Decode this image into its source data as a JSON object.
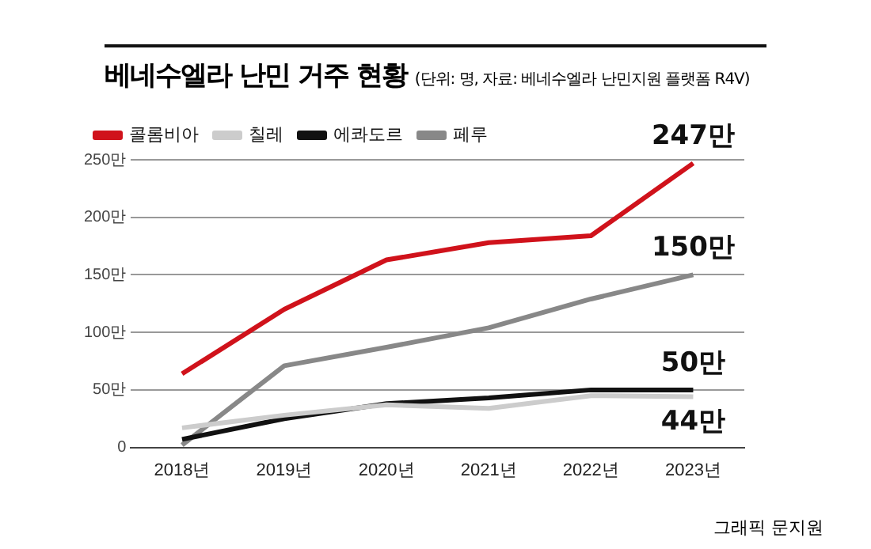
{
  "chart_data": {
    "type": "line",
    "title": "베네수엘라 난민 거주 현황",
    "subtitle": "(단위: 명, 자료: 베네수엘라 난민지원 플랫폼 R4V)",
    "categories": [
      "2018년",
      "2019년",
      "2020년",
      "2021년",
      "2022년",
      "2023년"
    ],
    "series": [
      {
        "name": "콜롬비아",
        "color": "#d0121b",
        "values": [
          64,
          120,
          163,
          178,
          184,
          247
        ],
        "value_labels": [
          null,
          null,
          null,
          null,
          null,
          "247만"
        ]
      },
      {
        "name": "칠레",
        "color": "#cccccc",
        "values": [
          17,
          28,
          37,
          34,
          45,
          44
        ],
        "value_labels": [
          null,
          null,
          null,
          null,
          null,
          "44만"
        ]
      },
      {
        "name": "에콰도르",
        "color": "#111111",
        "values": [
          7,
          25,
          38,
          43,
          50,
          50
        ],
        "value_labels": [
          null,
          null,
          null,
          null,
          null,
          "50만"
        ]
      },
      {
        "name": "페루",
        "color": "#888888",
        "values": [
          2,
          71,
          87,
          104,
          129,
          150
        ],
        "value_labels": [
          null,
          null,
          null,
          null,
          null,
          "150만"
        ]
      }
    ],
    "ylim": [
      0,
      250
    ],
    "yticks": [
      0,
      {
        "value": 50,
        "label": "50만"
      },
      {
        "value": 100,
        "label": "100만"
      },
      {
        "value": 150,
        "label": "150만"
      },
      {
        "value": 200,
        "label": "200만"
      },
      {
        "value": 250,
        "label": "250만"
      }
    ],
    "grid": "y",
    "legend": "top left",
    "line_style": "solid",
    "annotations": [
      "그래픽 문지원"
    ]
  }
}
